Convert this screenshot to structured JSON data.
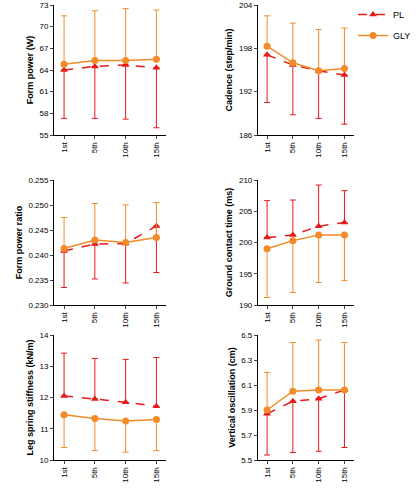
{
  "chart_data": [
    {
      "type": "line",
      "y_label": "Form power (W)",
      "categories": [
        "1st",
        "5th",
        "10th",
        "15th"
      ],
      "ylim": [
        55,
        73
      ],
      "yticks": [
        55,
        58,
        61,
        64,
        67,
        70,
        73
      ],
      "grid": false,
      "series": [
        {
          "name": "PL",
          "color": "#e41a1c",
          "marker": "triangle-up",
          "line_style": "dashed",
          "values": [
            64.0,
            64.5,
            64.7,
            64.3
          ],
          "error_lower": [
            6.7,
            7.2,
            7.5,
            8.3
          ]
        },
        {
          "name": "GLY",
          "color": "#f28c28",
          "marker": "circle",
          "line_style": "solid",
          "values": [
            64.8,
            65.3,
            65.3,
            65.5
          ],
          "error_upper": [
            6.7,
            6.9,
            7.2,
            6.8
          ]
        }
      ]
    },
    {
      "type": "line",
      "y_label": "Cadence (step/min)",
      "categories": [
        "1st",
        "5th",
        "10th",
        "15th"
      ],
      "ylim": [
        186,
        204
      ],
      "yticks": [
        186,
        192,
        198,
        204
      ],
      "grid": false,
      "legend": "top right",
      "series": [
        {
          "name": "PL",
          "color": "#e41a1c",
          "marker": "triangle-up",
          "line_style": "dashed",
          "values": [
            197.1,
            195.7,
            194.9,
            194.3
          ],
          "error_lower": [
            6.6,
            6.9,
            6.6,
            6.8
          ]
        },
        {
          "name": "GLY",
          "color": "#f28c28",
          "marker": "circle",
          "line_style": "solid",
          "values": [
            198.3,
            196.0,
            194.9,
            195.2
          ],
          "error_upper": [
            4.2,
            5.5,
            5.7,
            5.6
          ]
        }
      ]
    },
    {
      "type": "line",
      "y_label": "Form power ratio",
      "categories": [
        "1st",
        "5th",
        "10th",
        "15th"
      ],
      "ylim": [
        0.23,
        0.255
      ],
      "yticks": [
        {
          "value": 0.23,
          "label": "0.230"
        },
        {
          "value": 0.235,
          "label": "0.235"
        },
        {
          "value": 0.24,
          "label": "0.240"
        },
        {
          "value": 0.245,
          "label": "0.245"
        },
        {
          "value": 0.25,
          "label": "0.250"
        },
        {
          "value": 0.255,
          "label": "0.255"
        }
      ],
      "grid": false,
      "series": [
        {
          "name": "PL",
          "color": "#e41a1c",
          "marker": "triangle-up",
          "line_style": "dashed",
          "values": [
            0.2408,
            0.2422,
            0.2423,
            0.2458
          ],
          "error_lower": [
            0.0073,
            0.007,
            0.0079,
            0.0093
          ]
        },
        {
          "name": "GLY",
          "color": "#f28c28",
          "marker": "circle",
          "line_style": "solid",
          "values": [
            0.2413,
            0.243,
            0.2425,
            0.2435
          ],
          "error_upper": [
            0.0062,
            0.0073,
            0.0075,
            0.007
          ]
        }
      ]
    },
    {
      "type": "line",
      "y_label": "Ground contact time (ms)",
      "categories": [
        "1st",
        "5th",
        "10th",
        "15th"
      ],
      "ylim": [
        190,
        210
      ],
      "yticks": [
        190,
        195,
        200,
        205,
        210
      ],
      "grid": false,
      "series": [
        {
          "name": "PL",
          "color": "#e41a1c",
          "marker": "triangle-up",
          "line_style": "dashed",
          "values": [
            200.8,
            201.2,
            202.6,
            203.2
          ],
          "error_upper": [
            5.9,
            5.6,
            6.6,
            5.1
          ]
        },
        {
          "name": "GLY",
          "color": "#f28c28",
          "marker": "circle",
          "line_style": "solid",
          "values": [
            199.0,
            200.3,
            201.2,
            201.2
          ],
          "error_lower": [
            7.8,
            8.3,
            7.6,
            7.3
          ]
        }
      ]
    },
    {
      "type": "line",
      "y_label": "Leg spring stiffness (kN/m)",
      "categories": [
        "1st",
        "5th",
        "10th",
        "15th"
      ],
      "ylim": [
        10,
        14
      ],
      "yticks": [
        10,
        11,
        12,
        13,
        14
      ],
      "grid": false,
      "series": [
        {
          "name": "PL",
          "color": "#e41a1c",
          "marker": "triangle-up",
          "line_style": "dashed",
          "values": [
            12.05,
            11.95,
            11.85,
            11.72
          ],
          "error_upper": [
            1.37,
            1.3,
            1.37,
            1.56
          ]
        },
        {
          "name": "GLY",
          "color": "#f28c28",
          "marker": "circle",
          "line_style": "solid",
          "values": [
            11.45,
            11.33,
            11.25,
            11.3
          ],
          "error_lower": [
            1.05,
            1.03,
            1.0,
            1.0
          ]
        }
      ]
    },
    {
      "type": "line",
      "y_label": "Vertical oscillation (cm)",
      "categories": [
        "1st",
        "5th",
        "10th",
        "15th"
      ],
      "ylim": [
        5.5,
        6.5
      ],
      "yticks": [
        5.5,
        5.7,
        5.9,
        6.1,
        6.3,
        6.5
      ],
      "grid": false,
      "series": [
        {
          "name": "PL",
          "color": "#e41a1c",
          "marker": "triangle-up",
          "line_style": "dashed",
          "values": [
            5.87,
            5.97,
            5.99,
            6.06
          ],
          "error_lower": [
            0.33,
            0.41,
            0.42,
            0.46
          ]
        },
        {
          "name": "GLY",
          "color": "#f28c28",
          "marker": "circle",
          "line_style": "solid",
          "values": [
            5.9,
            6.05,
            6.06,
            6.06
          ],
          "error_upper": [
            0.3,
            0.39,
            0.4,
            0.38
          ]
        }
      ]
    }
  ]
}
